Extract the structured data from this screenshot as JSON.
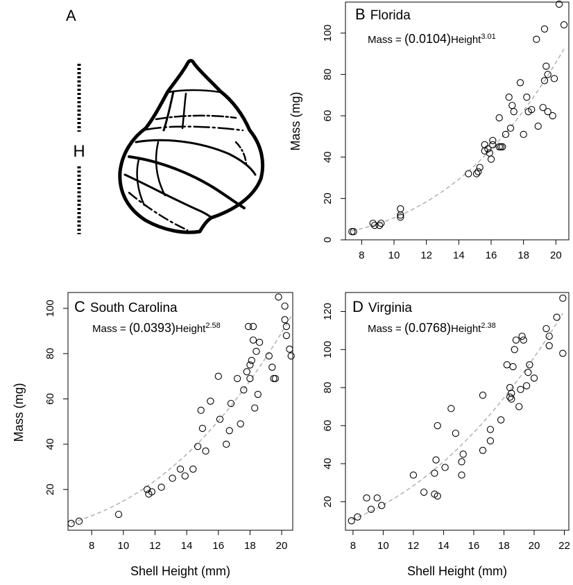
{
  "panel_a": {
    "letter": "A",
    "height_label": "H"
  },
  "chart_data": [
    {
      "panel": "B",
      "type": "scatter",
      "title": "Florida",
      "equation": {
        "prefix": "Mass = ",
        "coef": "(0.0104)",
        "term": "Height",
        "exp": "3.01"
      },
      "fit": {
        "a": 0.0104,
        "b": 3.01
      },
      "xlabel": "",
      "ylabel": "Mass (mg)",
      "xlim": [
        7,
        20.8
      ],
      "ylim": [
        0,
        115
      ],
      "xticks": [
        8,
        10,
        12,
        14,
        16,
        18,
        20
      ],
      "yticks": [
        0,
        20,
        40,
        60,
        80,
        100
      ],
      "grid": false,
      "points": [
        [
          7.4,
          4
        ],
        [
          7.5,
          4
        ],
        [
          8.7,
          8
        ],
        [
          8.8,
          7
        ],
        [
          9.1,
          7
        ],
        [
          9.2,
          8
        ],
        [
          10.4,
          15
        ],
        [
          10.4,
          12
        ],
        [
          10.4,
          11
        ],
        [
          14.6,
          32
        ],
        [
          15.1,
          32
        ],
        [
          15.2,
          33
        ],
        [
          15.3,
          35
        ],
        [
          15.6,
          43
        ],
        [
          15.6,
          46
        ],
        [
          15.8,
          44
        ],
        [
          15.9,
          42
        ],
        [
          16.0,
          39
        ],
        [
          16.1,
          46
        ],
        [
          16.1,
          48
        ],
        [
          16.5,
          45
        ],
        [
          16.6,
          45
        ],
        [
          16.5,
          59
        ],
        [
          16.7,
          45
        ],
        [
          16.9,
          51
        ],
        [
          17.1,
          69
        ],
        [
          17.2,
          54
        ],
        [
          17.3,
          65
        ],
        [
          17.4,
          62
        ],
        [
          17.8,
          76
        ],
        [
          18.0,
          51
        ],
        [
          18.2,
          69
        ],
        [
          18.3,
          62
        ],
        [
          18.5,
          63
        ],
        [
          18.8,
          97
        ],
        [
          18.9,
          55
        ],
        [
          19.2,
          64
        ],
        [
          19.3,
          102
        ],
        [
          19.3,
          77
        ],
        [
          19.4,
          84
        ],
        [
          19.5,
          80
        ],
        [
          19.5,
          62
        ],
        [
          19.8,
          60
        ],
        [
          19.9,
          78
        ],
        [
          20.2,
          114
        ],
        [
          20.5,
          104
        ]
      ]
    },
    {
      "panel": "C",
      "type": "scatter",
      "title": "South Carolina",
      "equation": {
        "prefix": "Mass = ",
        "coef": "(0.0393)",
        "term": "Height",
        "exp": "2.58"
      },
      "fit": {
        "a": 0.0393,
        "b": 2.58
      },
      "xlabel": "Shell Height (mm)",
      "ylabel": "Mass (mg)",
      "xlim": [
        6.5,
        20.7
      ],
      "ylim": [
        2,
        107
      ],
      "xticks": [
        8,
        10,
        12,
        14,
        16,
        18,
        20
      ],
      "yticks": [
        20,
        40,
        60,
        80,
        100
      ],
      "grid": false,
      "points": [
        [
          6.7,
          5
        ],
        [
          7.2,
          6
        ],
        [
          9.7,
          9
        ],
        [
          11.5,
          20
        ],
        [
          11.6,
          18
        ],
        [
          11.8,
          19
        ],
        [
          12.4,
          21
        ],
        [
          13.1,
          25
        ],
        [
          13.6,
          29
        ],
        [
          13.9,
          26
        ],
        [
          14.4,
          29
        ],
        [
          14.7,
          39
        ],
        [
          14.9,
          55
        ],
        [
          15.0,
          47
        ],
        [
          15.2,
          37
        ],
        [
          15.5,
          59
        ],
        [
          16.0,
          70
        ],
        [
          16.1,
          51
        ],
        [
          16.5,
          40
        ],
        [
          16.7,
          46
        ],
        [
          16.8,
          58
        ],
        [
          17.2,
          69
        ],
        [
          17.4,
          49
        ],
        [
          17.6,
          64
        ],
        [
          17.8,
          72
        ],
        [
          17.9,
          92
        ],
        [
          18.0,
          69
        ],
        [
          18.0,
          75
        ],
        [
          18.1,
          77
        ],
        [
          18.2,
          86
        ],
        [
          18.2,
          92
        ],
        [
          18.3,
          56
        ],
        [
          18.4,
          81
        ],
        [
          18.5,
          62
        ],
        [
          18.6,
          85
        ],
        [
          19.2,
          79
        ],
        [
          19.4,
          74
        ],
        [
          19.5,
          69
        ],
        [
          19.6,
          69
        ],
        [
          19.8,
          105
        ],
        [
          20.2,
          101
        ],
        [
          20.2,
          95
        ],
        [
          20.3,
          92
        ],
        [
          20.3,
          88
        ],
        [
          20.5,
          82
        ],
        [
          20.6,
          79
        ]
      ]
    },
    {
      "panel": "D",
      "type": "scatter",
      "title": "Virginia",
      "equation": {
        "prefix": "Mass = ",
        "coef": "(0.0768)",
        "term": "Height",
        "exp": "2.38"
      },
      "fit": {
        "a": 0.0768,
        "b": 2.38
      },
      "xlabel": "Shell Height (mm)",
      "ylabel": "",
      "xlim": [
        7.5,
        22.3
      ],
      "ylim": [
        5,
        130
      ],
      "xticks": [
        8,
        10,
        12,
        14,
        16,
        18,
        20,
        22
      ],
      "yticks": [
        20,
        40,
        60,
        80,
        100,
        120
      ],
      "grid": false,
      "points": [
        [
          7.9,
          10
        ],
        [
          8.3,
          12
        ],
        [
          8.9,
          22
        ],
        [
          9.2,
          16
        ],
        [
          9.6,
          22
        ],
        [
          9.9,
          18
        ],
        [
          12.0,
          34
        ],
        [
          12.7,
          25
        ],
        [
          13.4,
          24
        ],
        [
          13.4,
          35
        ],
        [
          13.5,
          42
        ],
        [
          13.6,
          60
        ],
        [
          13.6,
          23
        ],
        [
          14.1,
          38
        ],
        [
          14.5,
          69
        ],
        [
          14.8,
          56
        ],
        [
          15.2,
          34
        ],
        [
          15.2,
          41
        ],
        [
          15.3,
          45
        ],
        [
          16.6,
          76
        ],
        [
          16.6,
          47
        ],
        [
          17.1,
          52
        ],
        [
          17.1,
          58
        ],
        [
          17.8,
          63
        ],
        [
          18.2,
          92
        ],
        [
          18.4,
          80
        ],
        [
          18.4,
          75
        ],
        [
          18.5,
          74
        ],
        [
          18.5,
          77
        ],
        [
          18.6,
          91
        ],
        [
          18.7,
          100
        ],
        [
          18.8,
          105
        ],
        [
          19.0,
          70
        ],
        [
          19.1,
          79
        ],
        [
          19.2,
          107
        ],
        [
          19.3,
          105
        ],
        [
          19.5,
          81
        ],
        [
          19.6,
          88
        ],
        [
          19.7,
          92
        ],
        [
          20.0,
          85
        ],
        [
          20.8,
          111
        ],
        [
          21.0,
          107
        ],
        [
          21.0,
          102
        ],
        [
          21.5,
          117
        ],
        [
          21.9,
          127
        ],
        [
          21.9,
          98
        ]
      ]
    }
  ]
}
